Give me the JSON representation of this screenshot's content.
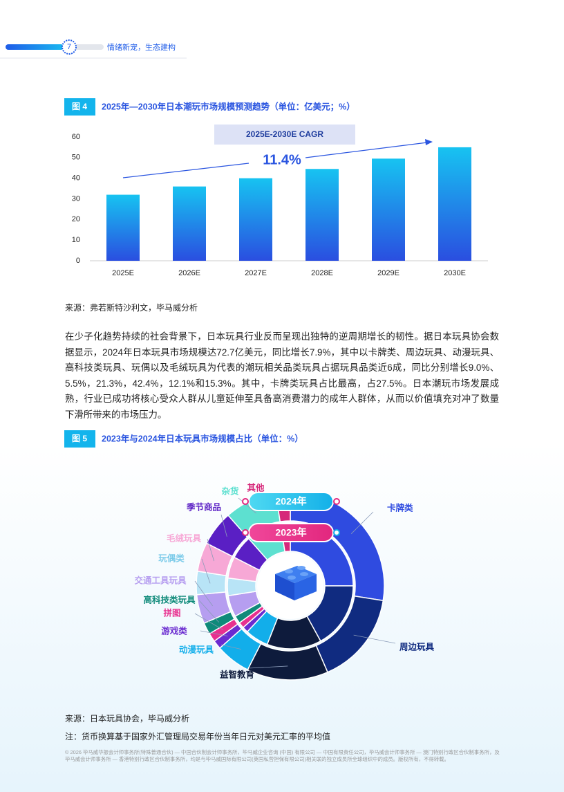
{
  "header": {
    "page_number": "7",
    "section": "情绪新宠，生态建构"
  },
  "figure4": {
    "label": "图 4",
    "source": "来源：弗若斯特沙利文，毕马威分析"
  },
  "paragraph": "在少子化趋势持续的社会背景下，日本玩具行业反而呈现出独特的逆周期增长的韧性。据日本玩具协会数据显示，2024年日本玩具市场规模达72.7亿美元，同比增长7.9%，其中以卡牌类、周边玩具、动漫玩具、高科技类玩具、玩偶以及毛绒玩具为代表的潮玩相关品类玩具占据玩具品类近6成，同比分别增长9.0%、5.5%，21.3%，42.4%，12.1%和15.3%。其中，卡牌类玩具占比最高，占27.5%。日本潮玩市场发展成熟，行业已成功将核心受众人群从儿童延伸至具备高消费潜力的成年人群体，从而以价值填充对冲了数量下滑所带来的市场压力。",
  "figure5": {
    "label": "图 5",
    "source": "来源：日本玩具协会，毕马威分析",
    "note": "注：货币换算基于国家外汇管理局交易年份当年日元对美元汇率的平均值"
  },
  "footer": "© 2026 毕马威华振会计师事务所(特殊普通合伙) — 中国合伙制会计师事务所，毕马威企业咨询 (中国) 有限公司 — 中国有限责任公司，毕马威会计师事务所 — 澳门特别行政区合伙制事务所，及毕马威会计师事务所 — 香港特别行政区合伙制事务所，均是与毕马威国际有限公司(英国私营担保有限公司)相关联的独立成员所全球组织中的成员。版权所有，不得转载。",
  "chart_data": [
    {
      "type": "bar",
      "title": "2025年—2030年日本潮玩市场规模预测趋势（单位：亿美元；%）",
      "categories": [
        "2025E",
        "2026E",
        "2027E",
        "2028E",
        "2029E",
        "2030E"
      ],
      "values": [
        32,
        36,
        40,
        44.5,
        49.5,
        55
      ],
      "colors": [
        "#17c3f1",
        "#2a4ee0"
      ],
      "ylim": [
        0,
        60
      ],
      "yticks": [
        0,
        10,
        20,
        30,
        40,
        50,
        60
      ],
      "grid": false,
      "annotations": [
        "2025E-2030E CAGR",
        "11.4%"
      ]
    },
    {
      "type": "donut",
      "title": "2023年与2024年日本玩具市场规模占比（单位：%）",
      "categories": [
        "卡牌类",
        "周边玩具",
        "益智教育",
        "动漫玩具",
        "游戏类",
        "拼图",
        "高科技类玩具",
        "交通工具玩具",
        "玩偶类",
        "毛绒玩具",
        "季节商品",
        "杂货",
        "其他"
      ],
      "colors": [
        "#2f4be0",
        "#102b80",
        "#0e1b3c",
        "#12aeea",
        "#6a2bd0",
        "#e8308f",
        "#0f8a7a",
        "#b69ef0",
        "#b8e4f6",
        "#f7a8d6",
        "#5a1fc4",
        "#5de0d0",
        "#d6287a"
      ],
      "series": [
        {
          "name": "2024年",
          "values": [
            27.5,
            16,
            14,
            6,
            1.5,
            1.5,
            2,
            5,
            4,
            5,
            6,
            9,
            2.5
          ]
        },
        {
          "name": "2023年",
          "values": [
            25,
            17,
            14,
            6,
            1.5,
            1.5,
            2,
            5.5,
            4.5,
            5.5,
            6,
            9,
            2.5
          ]
        }
      ]
    }
  ]
}
